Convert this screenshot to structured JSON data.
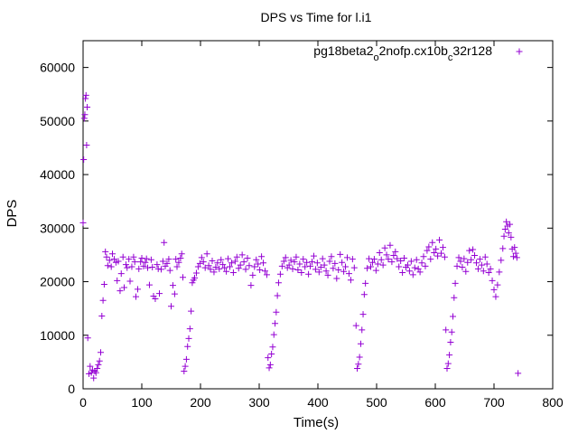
{
  "chart_data": {
    "type": "scatter",
    "title": "DPS vs Time for l.i1",
    "xlabel": "Time(s)",
    "ylabel": "DPS",
    "xlim": [
      0,
      800
    ],
    "ylim": [
      0,
      65000
    ],
    "xticks": [
      0,
      100,
      200,
      300,
      400,
      500,
      600,
      700,
      800
    ],
    "yticks": [
      0,
      10000,
      20000,
      30000,
      40000,
      50000,
      60000
    ],
    "grid": false,
    "legend_position": "top-right",
    "marker": "plus",
    "color": "#9400D3",
    "series": [
      {
        "name": "pg18beta2_o2nofp.cx10b_c32r128",
        "points": [
          [
            0,
            31000
          ],
          [
            1,
            42800
          ],
          [
            2,
            50500
          ],
          [
            3,
            51200
          ],
          [
            4,
            54200
          ],
          [
            5,
            54800
          ],
          [
            6,
            45500
          ],
          [
            7,
            52600
          ],
          [
            8,
            9500
          ],
          [
            10,
            2800
          ],
          [
            12,
            4200
          ],
          [
            14,
            3000
          ],
          [
            16,
            3500
          ],
          [
            18,
            2000
          ],
          [
            20,
            3300
          ],
          [
            22,
            3000
          ],
          [
            24,
            3800
          ],
          [
            26,
            4500
          ],
          [
            28,
            5200
          ],
          [
            30,
            6800
          ],
          [
            32,
            13600
          ],
          [
            34,
            16500
          ],
          [
            36,
            19500
          ],
          [
            38,
            25600
          ],
          [
            40,
            24600
          ],
          [
            42,
            23000
          ],
          [
            45,
            24000
          ],
          [
            48,
            22800
          ],
          [
            50,
            25200
          ],
          [
            53,
            24200
          ],
          [
            56,
            23600
          ],
          [
            58,
            20200
          ],
          [
            60,
            23800
          ],
          [
            63,
            18300
          ],
          [
            65,
            21500
          ],
          [
            68,
            24600
          ],
          [
            70,
            18900
          ],
          [
            73,
            23200
          ],
          [
            75,
            22600
          ],
          [
            78,
            24200
          ],
          [
            80,
            20100
          ],
          [
            83,
            22800
          ],
          [
            86,
            24600
          ],
          [
            88,
            23700
          ],
          [
            90,
            17200
          ],
          [
            93,
            18600
          ],
          [
            95,
            22400
          ],
          [
            98,
            23700
          ],
          [
            100,
            24400
          ],
          [
            103,
            22900
          ],
          [
            106,
            23600
          ],
          [
            108,
            24300
          ],
          [
            110,
            22600
          ],
          [
            113,
            19400
          ],
          [
            116,
            24100
          ],
          [
            118,
            22700
          ],
          [
            120,
            17300
          ],
          [
            123,
            16800
          ],
          [
            126,
            23200
          ],
          [
            128,
            22400
          ],
          [
            130,
            17800
          ],
          [
            133,
            22300
          ],
          [
            136,
            23800
          ],
          [
            138,
            27300
          ],
          [
            140,
            22900
          ],
          [
            143,
            23400
          ],
          [
            146,
            24200
          ],
          [
            148,
            22100
          ],
          [
            150,
            15400
          ],
          [
            153,
            19300
          ],
          [
            156,
            17700
          ],
          [
            158,
            24200
          ],
          [
            160,
            22800
          ],
          [
            163,
            23600
          ],
          [
            166,
            24400
          ],
          [
            168,
            25200
          ],
          [
            170,
            20800
          ],
          [
            172,
            3300
          ],
          [
            174,
            4200
          ],
          [
            176,
            5500
          ],
          [
            178,
            7900
          ],
          [
            180,
            9400
          ],
          [
            182,
            11200
          ],
          [
            184,
            14500
          ],
          [
            186,
            19800
          ],
          [
            188,
            20300
          ],
          [
            190,
            20700
          ],
          [
            193,
            21600
          ],
          [
            196,
            22800
          ],
          [
            199,
            23400
          ],
          [
            202,
            24500
          ],
          [
            205,
            23700
          ],
          [
            208,
            22600
          ],
          [
            211,
            25200
          ],
          [
            214,
            23000
          ],
          [
            217,
            22300
          ],
          [
            220,
            23900
          ],
          [
            223,
            21800
          ],
          [
            226,
            22700
          ],
          [
            229,
            23500
          ],
          [
            232,
            22400
          ],
          [
            235,
            24100
          ],
          [
            238,
            23200
          ],
          [
            241,
            22600
          ],
          [
            244,
            21900
          ],
          [
            247,
            24300
          ],
          [
            250,
            22800
          ],
          [
            253,
            23500
          ],
          [
            256,
            21700
          ],
          [
            259,
            23800
          ],
          [
            262,
            24600
          ],
          [
            265,
            22500
          ],
          [
            268,
            23100
          ],
          [
            271,
            25000
          ],
          [
            274,
            23700
          ],
          [
            277,
            22300
          ],
          [
            280,
            24400
          ],
          [
            283,
            23000
          ],
          [
            286,
            19300
          ],
          [
            289,
            21200
          ],
          [
            292,
            22800
          ],
          [
            295,
            24100
          ],
          [
            298,
            23300
          ],
          [
            301,
            22200
          ],
          [
            304,
            24700
          ],
          [
            307,
            23500
          ],
          [
            310,
            22000
          ],
          [
            313,
            21300
          ],
          [
            315,
            5800
          ],
          [
            317,
            3900
          ],
          [
            319,
            4500
          ],
          [
            321,
            6500
          ],
          [
            323,
            7800
          ],
          [
            325,
            10100
          ],
          [
            327,
            12200
          ],
          [
            329,
            14300
          ],
          [
            331,
            17400
          ],
          [
            333,
            19800
          ],
          [
            336,
            21400
          ],
          [
            339,
            22900
          ],
          [
            342,
            23800
          ],
          [
            345,
            24500
          ],
          [
            348,
            22600
          ],
          [
            351,
            23100
          ],
          [
            354,
            24000
          ],
          [
            357,
            22400
          ],
          [
            360,
            23700
          ],
          [
            363,
            24600
          ],
          [
            366,
            22200
          ],
          [
            369,
            23300
          ],
          [
            372,
            21700
          ],
          [
            375,
            24200
          ],
          [
            378,
            22800
          ],
          [
            381,
            23600
          ],
          [
            384,
            21400
          ],
          [
            387,
            22900
          ],
          [
            390,
            23700
          ],
          [
            393,
            24800
          ],
          [
            396,
            22300
          ],
          [
            399,
            23500
          ],
          [
            402,
            21800
          ],
          [
            405,
            22700
          ],
          [
            408,
            24300
          ],
          [
            411,
            23100
          ],
          [
            414,
            22000
          ],
          [
            417,
            21200
          ],
          [
            420,
            23800
          ],
          [
            423,
            24700
          ],
          [
            426,
            22500
          ],
          [
            429,
            23400
          ],
          [
            432,
            20600
          ],
          [
            435,
            22200
          ],
          [
            438,
            25100
          ],
          [
            441,
            23600
          ],
          [
            444,
            21900
          ],
          [
            447,
            22800
          ],
          [
            450,
            24500
          ],
          [
            453,
            21500
          ],
          [
            456,
            20300
          ],
          [
            459,
            24200
          ],
          [
            462,
            22600
          ],
          [
            465,
            11800
          ],
          [
            467,
            3800
          ],
          [
            469,
            4600
          ],
          [
            471,
            5900
          ],
          [
            473,
            8400
          ],
          [
            475,
            11000
          ],
          [
            477,
            13900
          ],
          [
            479,
            17600
          ],
          [
            481,
            19700
          ],
          [
            484,
            22500
          ],
          [
            487,
            24300
          ],
          [
            490,
            22800
          ],
          [
            493,
            23600
          ],
          [
            496,
            24200
          ],
          [
            499,
            22100
          ],
          [
            502,
            23300
          ],
          [
            505,
            25400
          ],
          [
            508,
            24100
          ],
          [
            511,
            23100
          ],
          [
            514,
            26300
          ],
          [
            517,
            25000
          ],
          [
            520,
            24200
          ],
          [
            523,
            26800
          ],
          [
            526,
            23700
          ],
          [
            529,
            24900
          ],
          [
            532,
            25600
          ],
          [
            535,
            24300
          ],
          [
            538,
            22800
          ],
          [
            541,
            23900
          ],
          [
            544,
            21700
          ],
          [
            547,
            24400
          ],
          [
            550,
            22700
          ],
          [
            553,
            23100
          ],
          [
            556,
            22000
          ],
          [
            559,
            23800
          ],
          [
            562,
            21300
          ],
          [
            565,
            22600
          ],
          [
            568,
            24100
          ],
          [
            571,
            22400
          ],
          [
            574,
            21800
          ],
          [
            577,
            23500
          ],
          [
            580,
            24700
          ],
          [
            583,
            22900
          ],
          [
            586,
            25800
          ],
          [
            589,
            26500
          ],
          [
            592,
            24200
          ],
          [
            595,
            27300
          ],
          [
            598,
            25400
          ],
          [
            601,
            26100
          ],
          [
            604,
            24800
          ],
          [
            607,
            27800
          ],
          [
            610,
            25300
          ],
          [
            613,
            26400
          ],
          [
            616,
            24600
          ],
          [
            618,
            11000
          ],
          [
            620,
            3800
          ],
          [
            622,
            4700
          ],
          [
            624,
            6300
          ],
          [
            626,
            8700
          ],
          [
            628,
            10600
          ],
          [
            630,
            13500
          ],
          [
            632,
            17000
          ],
          [
            634,
            19700
          ],
          [
            637,
            22900
          ],
          [
            640,
            24500
          ],
          [
            643,
            23800
          ],
          [
            646,
            22700
          ],
          [
            649,
            24300
          ],
          [
            652,
            21900
          ],
          [
            655,
            23600
          ],
          [
            658,
            25800
          ],
          [
            661,
            24100
          ],
          [
            664,
            26000
          ],
          [
            667,
            24900
          ],
          [
            670,
            23500
          ],
          [
            673,
            22400
          ],
          [
            676,
            24200
          ],
          [
            679,
            23100
          ],
          [
            682,
            22000
          ],
          [
            685,
            24600
          ],
          [
            688,
            23300
          ],
          [
            691,
            21700
          ],
          [
            694,
            22400
          ],
          [
            697,
            20200
          ],
          [
            700,
            18500
          ],
          [
            703,
            17200
          ],
          [
            706,
            19400
          ],
          [
            709,
            21800
          ],
          [
            712,
            24000
          ],
          [
            715,
            26200
          ],
          [
            717,
            28500
          ],
          [
            719,
            29800
          ],
          [
            721,
            31200
          ],
          [
            723,
            30400
          ],
          [
            725,
            29100
          ],
          [
            727,
            30700
          ],
          [
            729,
            28300
          ],
          [
            731,
            26100
          ],
          [
            733,
            24700
          ],
          [
            735,
            26400
          ],
          [
            737,
            25300
          ],
          [
            739,
            24500
          ],
          [
            741,
            2900
          ]
        ]
      }
    ]
  }
}
